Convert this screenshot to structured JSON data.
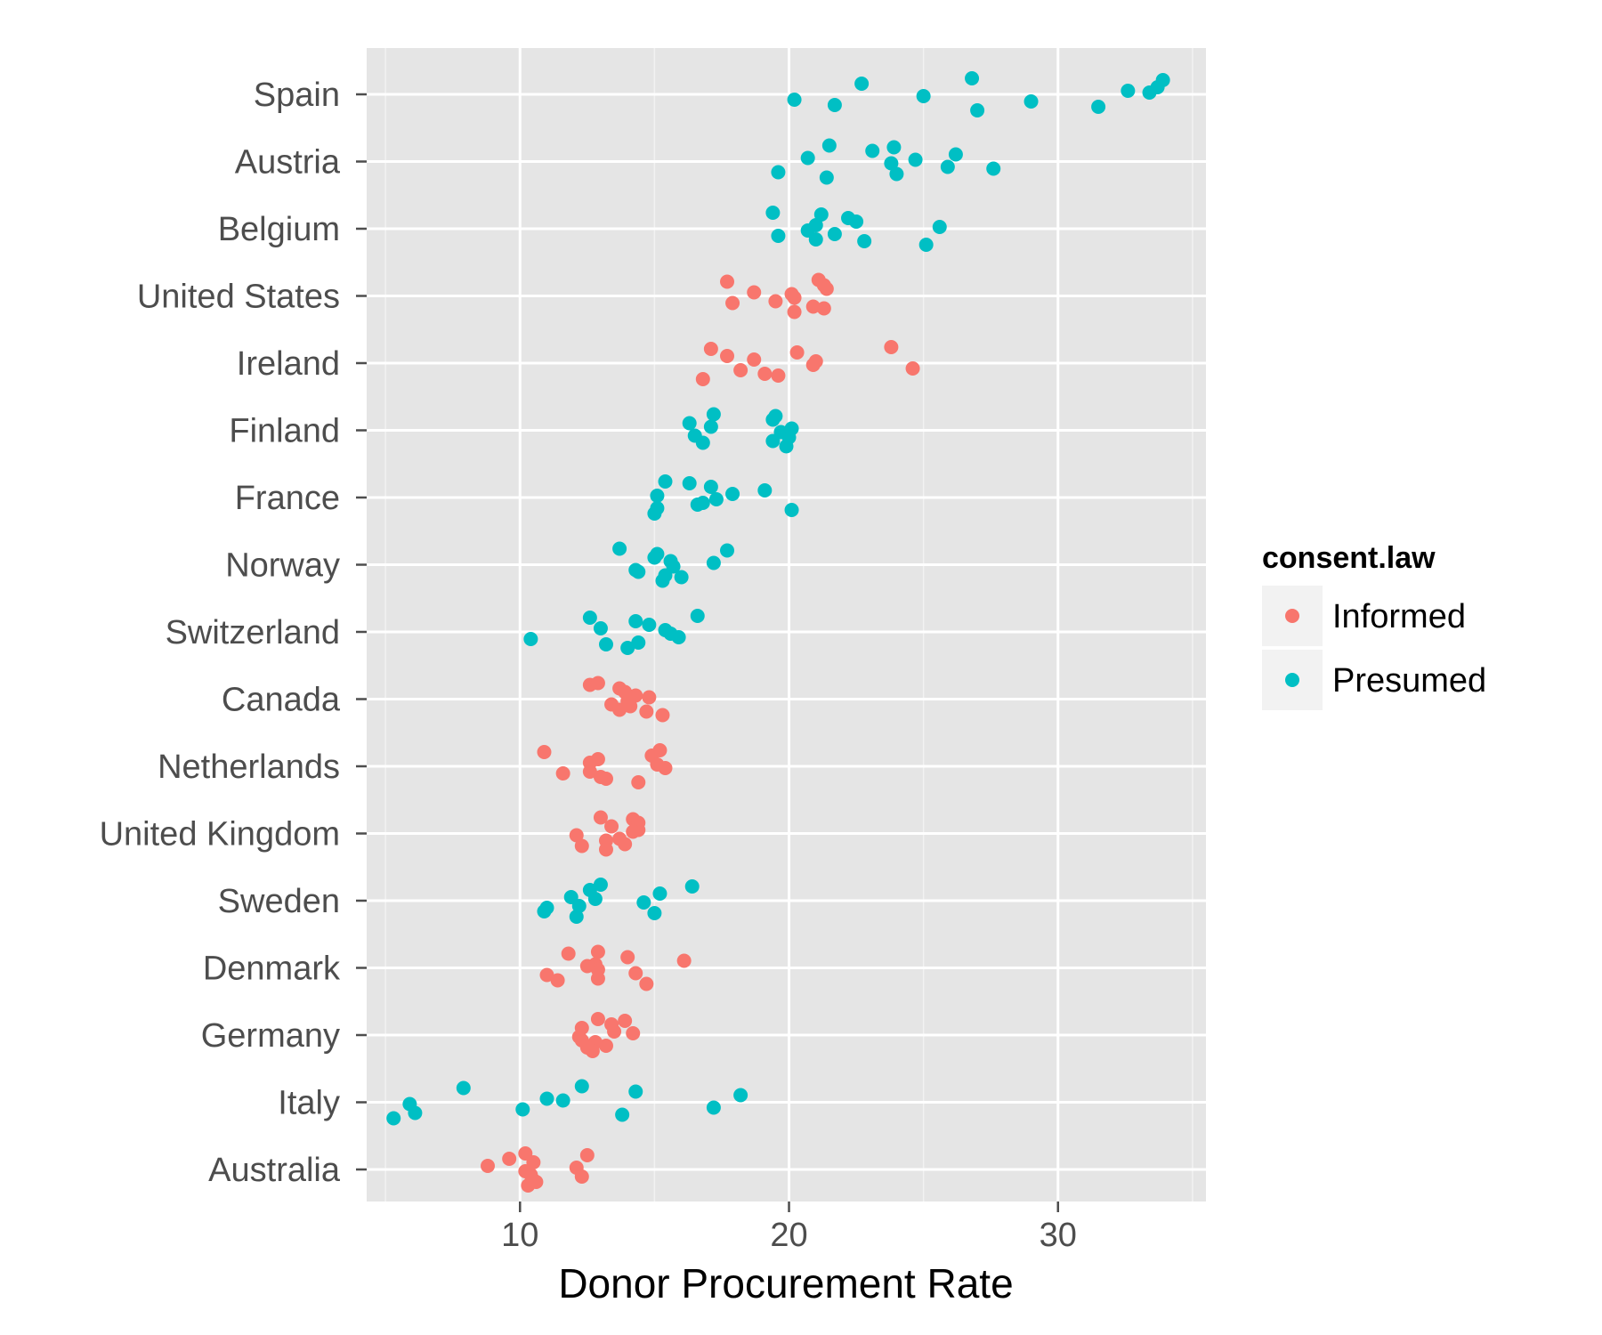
{
  "chart_data": {
    "type": "scatter",
    "title": "",
    "xlabel": "Donor Procurement Rate",
    "ylabel": "",
    "xlim": [
      4.3,
      35.5
    ],
    "x_ticks": [
      10,
      20,
      30
    ],
    "grid": true,
    "legend": {
      "title": "consent.law",
      "placement": "right"
    },
    "categories": [
      "Spain",
      "Austria",
      "Belgium",
      "United States",
      "Ireland",
      "Finland",
      "France",
      "Norway",
      "Switzerland",
      "Canada",
      "Netherlands",
      "United Kingdom",
      "Sweden",
      "Denmark",
      "Germany",
      "Italy",
      "Australia"
    ],
    "series": [
      {
        "name": "Informed",
        "color": "#f8766d",
        "points": [
          {
            "category": "United States",
            "x": 17.7
          },
          {
            "category": "United States",
            "x": 17.9
          },
          {
            "category": "United States",
            "x": 18.7
          },
          {
            "category": "United States",
            "x": 20.2
          },
          {
            "category": "United States",
            "x": 21.3
          },
          {
            "category": "United States",
            "x": 20.2
          },
          {
            "category": "United States",
            "x": 21.3
          },
          {
            "category": "United States",
            "x": 21.1
          },
          {
            "category": "United States",
            "x": 19.5
          },
          {
            "category": "United States",
            "x": 21.4
          },
          {
            "category": "United States",
            "x": 20.9
          },
          {
            "category": "United States",
            "x": 20.1
          },
          {
            "category": "Ireland",
            "x": 17.1
          },
          {
            "category": "Ireland",
            "x": 18.2
          },
          {
            "category": "Ireland",
            "x": 18.7
          },
          {
            "category": "Ireland",
            "x": 16.8
          },
          {
            "category": "Ireland",
            "x": 20.3
          },
          {
            "category": "Ireland",
            "x": 20.9
          },
          {
            "category": "Ireland",
            "x": 19.6
          },
          {
            "category": "Ireland",
            "x": 23.8
          },
          {
            "category": "Ireland",
            "x": 24.6
          },
          {
            "category": "Ireland",
            "x": 17.7
          },
          {
            "category": "Ireland",
            "x": 19.1
          },
          {
            "category": "Ireland",
            "x": 21.0
          },
          {
            "category": "Canada",
            "x": 12.6
          },
          {
            "category": "Canada",
            "x": 14.1
          },
          {
            "category": "Canada",
            "x": 14.3
          },
          {
            "category": "Canada",
            "x": 15.3
          },
          {
            "category": "Canada",
            "x": 13.7
          },
          {
            "category": "Canada",
            "x": 14.0
          },
          {
            "category": "Canada",
            "x": 14.7
          },
          {
            "category": "Canada",
            "x": 12.9
          },
          {
            "category": "Canada",
            "x": 13.4
          },
          {
            "category": "Canada",
            "x": 13.9
          },
          {
            "category": "Canada",
            "x": 13.7
          },
          {
            "category": "Canada",
            "x": 14.8
          },
          {
            "category": "Netherlands",
            "x": 10.9
          },
          {
            "category": "Netherlands",
            "x": 11.6
          },
          {
            "category": "Netherlands",
            "x": 12.6
          },
          {
            "category": "Netherlands",
            "x": 14.4
          },
          {
            "category": "Netherlands",
            "x": 14.9
          },
          {
            "category": "Netherlands",
            "x": 15.4
          },
          {
            "category": "Netherlands",
            "x": 13.2
          },
          {
            "category": "Netherlands",
            "x": 15.2
          },
          {
            "category": "Netherlands",
            "x": 12.6
          },
          {
            "category": "Netherlands",
            "x": 12.9
          },
          {
            "category": "Netherlands",
            "x": 13.0
          },
          {
            "category": "Netherlands",
            "x": 15.1
          },
          {
            "category": "United Kingdom",
            "x": 14.2
          },
          {
            "category": "United Kingdom",
            "x": 13.2
          },
          {
            "category": "United Kingdom",
            "x": 14.4
          },
          {
            "category": "United Kingdom",
            "x": 13.2
          },
          {
            "category": "United Kingdom",
            "x": 14.4
          },
          {
            "category": "United Kingdom",
            "x": 12.1
          },
          {
            "category": "United Kingdom",
            "x": 12.3
          },
          {
            "category": "United Kingdom",
            "x": 13.0
          },
          {
            "category": "United Kingdom",
            "x": 13.7
          },
          {
            "category": "United Kingdom",
            "x": 13.4
          },
          {
            "category": "United Kingdom",
            "x": 13.9
          },
          {
            "category": "United Kingdom",
            "x": 14.2
          },
          {
            "category": "Denmark",
            "x": 11.8
          },
          {
            "category": "Denmark",
            "x": 11.0
          },
          {
            "category": "Denmark",
            "x": 12.8
          },
          {
            "category": "Denmark",
            "x": 14.7
          },
          {
            "category": "Denmark",
            "x": 14.0
          },
          {
            "category": "Denmark",
            "x": 12.9
          },
          {
            "category": "Denmark",
            "x": 11.4
          },
          {
            "category": "Denmark",
            "x": 12.9
          },
          {
            "category": "Denmark",
            "x": 14.3
          },
          {
            "category": "Denmark",
            "x": 16.1
          },
          {
            "category": "Denmark",
            "x": 12.9
          },
          {
            "category": "Denmark",
            "x": 12.5
          },
          {
            "category": "Germany",
            "x": 13.9
          },
          {
            "category": "Germany",
            "x": 12.8
          },
          {
            "category": "Germany",
            "x": 13.5
          },
          {
            "category": "Germany",
            "x": 12.7
          },
          {
            "category": "Germany",
            "x": 13.4
          },
          {
            "category": "Germany",
            "x": 12.2
          },
          {
            "category": "Germany",
            "x": 12.5
          },
          {
            "category": "Germany",
            "x": 12.9
          },
          {
            "category": "Germany",
            "x": 12.3
          },
          {
            "category": "Germany",
            "x": 12.3
          },
          {
            "category": "Germany",
            "x": 13.2
          },
          {
            "category": "Germany",
            "x": 14.2
          },
          {
            "category": "Australia",
            "x": 12.5
          },
          {
            "category": "Australia",
            "x": 12.3
          },
          {
            "category": "Australia",
            "x": 8.8
          },
          {
            "category": "Australia",
            "x": 10.3
          },
          {
            "category": "Australia",
            "x": 9.6
          },
          {
            "category": "Australia",
            "x": 10.2
          },
          {
            "category": "Australia",
            "x": 10.6
          },
          {
            "category": "Australia",
            "x": 10.2
          },
          {
            "category": "Australia",
            "x": 10.4
          },
          {
            "category": "Australia",
            "x": 10.5
          },
          {
            "category": "Australia",
            "x": 10.5
          },
          {
            "category": "Australia",
            "x": 12.1
          }
        ]
      },
      {
        "name": "Presumed",
        "color": "#00bfc4",
        "points": [
          {
            "category": "Spain",
            "x": 33.9
          },
          {
            "category": "Spain",
            "x": 29.0
          },
          {
            "category": "Spain",
            "x": 32.6
          },
          {
            "category": "Spain",
            "x": 27.0
          },
          {
            "category": "Spain",
            "x": 22.7
          },
          {
            "category": "Spain",
            "x": 25.0
          },
          {
            "category": "Spain",
            "x": 31.5
          },
          {
            "category": "Spain",
            "x": 26.8
          },
          {
            "category": "Spain",
            "x": 20.2
          },
          {
            "category": "Spain",
            "x": 33.7
          },
          {
            "category": "Spain",
            "x": 21.7
          },
          {
            "category": "Spain",
            "x": 33.4
          },
          {
            "category": "Austria",
            "x": 23.9
          },
          {
            "category": "Austria",
            "x": 27.6
          },
          {
            "category": "Austria",
            "x": 20.7
          },
          {
            "category": "Austria",
            "x": 21.4
          },
          {
            "category": "Austria",
            "x": 23.1
          },
          {
            "category": "Austria",
            "x": 23.8
          },
          {
            "category": "Austria",
            "x": 24.0
          },
          {
            "category": "Austria",
            "x": 21.5
          },
          {
            "category": "Austria",
            "x": 25.9
          },
          {
            "category": "Austria",
            "x": 26.2
          },
          {
            "category": "Austria",
            "x": 19.6
          },
          {
            "category": "Austria",
            "x": 24.7
          },
          {
            "category": "Belgium",
            "x": 21.2
          },
          {
            "category": "Belgium",
            "x": 19.6
          },
          {
            "category": "Belgium",
            "x": 21.0
          },
          {
            "category": "Belgium",
            "x": 25.1
          },
          {
            "category": "Belgium",
            "x": 22.2
          },
          {
            "category": "Belgium",
            "x": 20.7
          },
          {
            "category": "Belgium",
            "x": 22.8
          },
          {
            "category": "Belgium",
            "x": 19.4
          },
          {
            "category": "Belgium",
            "x": 21.7
          },
          {
            "category": "Belgium",
            "x": 22.5
          },
          {
            "category": "Belgium",
            "x": 21.0
          },
          {
            "category": "Belgium",
            "x": 25.6
          },
          {
            "category": "Finland",
            "x": 19.5
          },
          {
            "category": "Finland",
            "x": 20.0
          },
          {
            "category": "Finland",
            "x": 17.1
          },
          {
            "category": "Finland",
            "x": 19.9
          },
          {
            "category": "Finland",
            "x": 19.4
          },
          {
            "category": "Finland",
            "x": 19.7
          },
          {
            "category": "Finland",
            "x": 16.8
          },
          {
            "category": "Finland",
            "x": 17.2
          },
          {
            "category": "Finland",
            "x": 16.5
          },
          {
            "category": "Finland",
            "x": 16.3
          },
          {
            "category": "Finland",
            "x": 19.4
          },
          {
            "category": "Finland",
            "x": 20.1
          },
          {
            "category": "France",
            "x": 16.3
          },
          {
            "category": "France",
            "x": 16.6
          },
          {
            "category": "France",
            "x": 17.9
          },
          {
            "category": "France",
            "x": 15.0
          },
          {
            "category": "France",
            "x": 17.1
          },
          {
            "category": "France",
            "x": 17.3
          },
          {
            "category": "France",
            "x": 20.1
          },
          {
            "category": "France",
            "x": 15.4
          },
          {
            "category": "France",
            "x": 16.8
          },
          {
            "category": "France",
            "x": 19.1
          },
          {
            "category": "France",
            "x": 15.1
          },
          {
            "category": "France",
            "x": 15.1
          },
          {
            "category": "Norway",
            "x": 17.7
          },
          {
            "category": "Norway",
            "x": 14.4
          },
          {
            "category": "Norway",
            "x": 15.6
          },
          {
            "category": "Norway",
            "x": 15.3
          },
          {
            "category": "Norway",
            "x": 15.1
          },
          {
            "category": "Norway",
            "x": 15.7
          },
          {
            "category": "Norway",
            "x": 16.0
          },
          {
            "category": "Norway",
            "x": 13.7
          },
          {
            "category": "Norway",
            "x": 14.3
          },
          {
            "category": "Norway",
            "x": 15.0
          },
          {
            "category": "Norway",
            "x": 15.4
          },
          {
            "category": "Norway",
            "x": 17.2
          },
          {
            "category": "Switzerland",
            "x": 12.6
          },
          {
            "category": "Switzerland",
            "x": 10.4
          },
          {
            "category": "Switzerland",
            "x": 13.0
          },
          {
            "category": "Switzerland",
            "x": 14.0
          },
          {
            "category": "Switzerland",
            "x": 14.3
          },
          {
            "category": "Switzerland",
            "x": 15.6
          },
          {
            "category": "Switzerland",
            "x": 13.2
          },
          {
            "category": "Switzerland",
            "x": 16.6
          },
          {
            "category": "Switzerland",
            "x": 15.9
          },
          {
            "category": "Switzerland",
            "x": 14.8
          },
          {
            "category": "Switzerland",
            "x": 14.4
          },
          {
            "category": "Switzerland",
            "x": 15.4
          },
          {
            "category": "Sweden",
            "x": 16.4
          },
          {
            "category": "Sweden",
            "x": 11.0
          },
          {
            "category": "Sweden",
            "x": 11.9
          },
          {
            "category": "Sweden",
            "x": 12.1
          },
          {
            "category": "Sweden",
            "x": 12.6
          },
          {
            "category": "Sweden",
            "x": 14.6
          },
          {
            "category": "Sweden",
            "x": 15.0
          },
          {
            "category": "Sweden",
            "x": 13.0
          },
          {
            "category": "Sweden",
            "x": 12.2
          },
          {
            "category": "Sweden",
            "x": 15.2
          },
          {
            "category": "Sweden",
            "x": 10.9
          },
          {
            "category": "Sweden",
            "x": 12.8
          },
          {
            "category": "Italy",
            "x": 7.9
          },
          {
            "category": "Italy",
            "x": 10.1
          },
          {
            "category": "Italy",
            "x": 11.0
          },
          {
            "category": "Italy",
            "x": 5.3
          },
          {
            "category": "Italy",
            "x": 14.3
          },
          {
            "category": "Italy",
            "x": 5.9
          },
          {
            "category": "Italy",
            "x": 13.8
          },
          {
            "category": "Italy",
            "x": 12.3
          },
          {
            "category": "Italy",
            "x": 17.2
          },
          {
            "category": "Italy",
            "x": 18.2
          },
          {
            "category": "Italy",
            "x": 6.1
          },
          {
            "category": "Italy",
            "x": 11.6
          }
        ]
      }
    ]
  }
}
